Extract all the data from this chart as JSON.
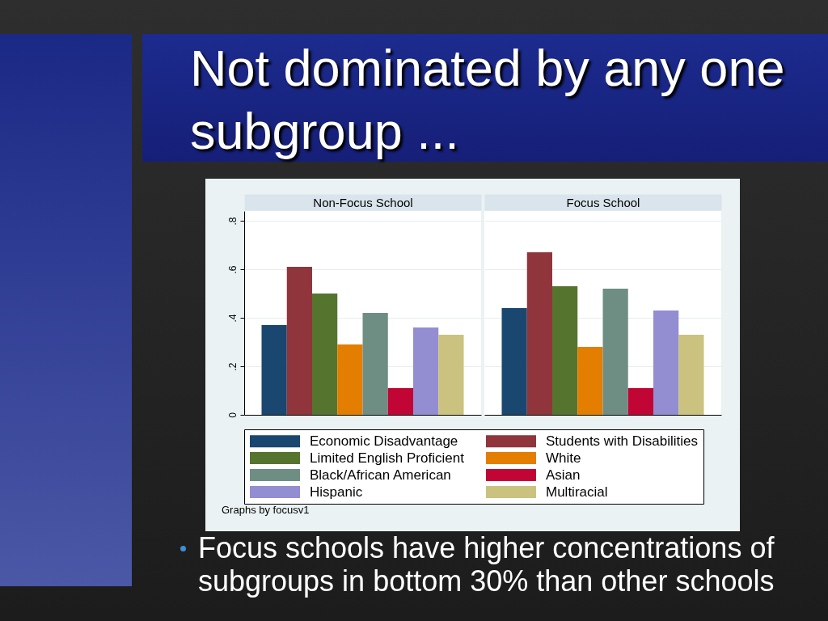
{
  "chart_data": {
    "type": "bar",
    "title": "Not dominated by any one subgroup ...",
    "categories": [
      "Non-Focus School",
      "Focus School"
    ],
    "series": [
      {
        "name": "Economic Disadvantage",
        "color": "#1a476f",
        "values": [
          0.37,
          0.44
        ]
      },
      {
        "name": "Students with Disabilities",
        "color": "#90353b",
        "values": [
          0.61,
          0.67
        ]
      },
      {
        "name": "Limited English Proficient",
        "color": "#55752f",
        "values": [
          0.5,
          0.53
        ]
      },
      {
        "name": "White",
        "color": "#e37e00",
        "values": [
          0.29,
          0.28
        ]
      },
      {
        "name": "Black/African American",
        "color": "#6e8e84",
        "values": [
          0.42,
          0.52
        ]
      },
      {
        "name": "Asian",
        "color": "#c10534",
        "values": [
          0.11,
          0.11
        ]
      },
      {
        "name": "Hispanic",
        "color": "#938dd2",
        "values": [
          0.36,
          0.43
        ]
      },
      {
        "name": "Multiracial",
        "color": "#cac27e",
        "values": [
          0.33,
          0.33
        ]
      }
    ],
    "ylim": [
      0,
      0.84
    ],
    "yticks": [
      0,
      {
        "value": 0.2,
        "label": ".2"
      },
      {
        "value": 0.4,
        "label": ".4"
      },
      {
        "value": 0.6,
        "label": ".6"
      },
      {
        "value": 0.8,
        "label": ".8"
      }
    ],
    "grid": "y",
    "legend": "bottom",
    "annotations": [
      "Graphs by focusv1",
      "Focus schools have higher concentrations of subgroups in bottom 30% than other schools"
    ]
  }
}
